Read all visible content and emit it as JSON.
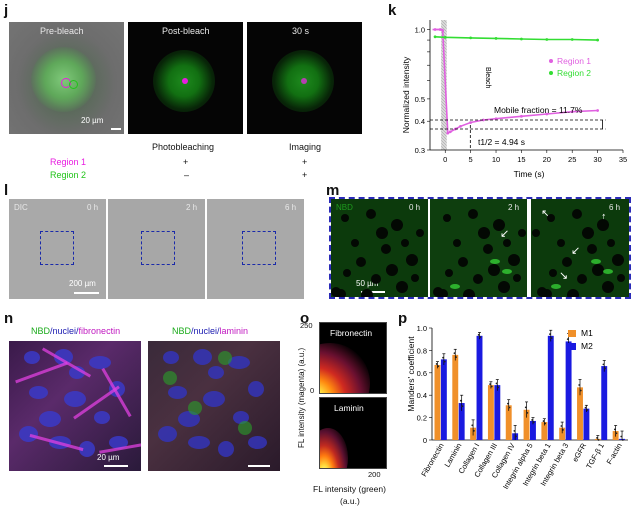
{
  "panel_j": {
    "letter": "j",
    "images": [
      "Pre-bleach",
      "Post-bleach",
      "30 s"
    ],
    "scale_bar": "20 µm",
    "col_headers": [
      "Photobleaching",
      "Imaging"
    ],
    "rows": [
      {
        "label": "Region 1",
        "color": "#e81ce0",
        "values": [
          "+",
          "+"
        ]
      },
      {
        "label": "Region 2",
        "color": "#22c41a",
        "values": [
          "–",
          "+"
        ]
      }
    ]
  },
  "panel_k": {
    "letter": "k",
    "bleach_label": "Bleach",
    "mobile_fraction": "Mobile fraction = 11.7%",
    "half_time": "t1/2 = 4.94 s"
  },
  "panel_l": {
    "letter": "l",
    "label_dic": "DIC",
    "times": [
      "0 h",
      "2 h",
      "6 h"
    ],
    "scale_bar": "200 µm"
  },
  "panel_m": {
    "letter": "m",
    "label_nbd": "NBD",
    "times": [
      "0 h",
      "2 h",
      "6 h"
    ],
    "scale_bar": "50 µm"
  },
  "panel_n": {
    "letter": "n",
    "left_title": [
      "NBD",
      "/nuclei/",
      "fibronectin"
    ],
    "right_title": [
      "NBD",
      "/nuclei/",
      "laminin"
    ],
    "scale_bar": "20 µm"
  },
  "panel_o": {
    "letter": "o",
    "top_label": "Fibronectin",
    "bottom_label": "Laminin",
    "ylabel": "FL intensity (magenta) (a.u.)",
    "xlabel": "FL intensity (green)",
    "xlabel2": "(a.u.)",
    "ticks": [
      "250",
      "0",
      "200"
    ]
  },
  "panel_p": {
    "letter": "p"
  },
  "chart_data": [
    {
      "type": "line",
      "title": "",
      "xlabel": "Time (s)",
      "ylabel": "Normalized intensity",
      "xlim": [
        -3,
        35
      ],
      "ylim": [
        0.3,
        1.1
      ],
      "yscale": "log",
      "xticks": [
        0,
        5,
        10,
        15,
        20,
        25,
        30,
        35
      ],
      "yticks": [
        0.3,
        0.4,
        0.5,
        0.6,
        0.7,
        0.8,
        0.9,
        1.0
      ],
      "ytick_labels": [
        "0.3",
        "0.4",
        "0.5",
        "0.6",
        "0.7",
        "0.8",
        "0.9",
        "1.0"
      ],
      "legend_position": "top-right",
      "series": [
        {
          "name": "Region 1",
          "color": "#e060e0",
          "x": [
            -2,
            -1,
            -0.5,
            0.5,
            1,
            2,
            3,
            5,
            7.5,
            10,
            15,
            20,
            25,
            30
          ],
          "y": [
            1.0,
            1.0,
            0.99,
            0.355,
            0.36,
            0.37,
            0.38,
            0.395,
            0.405,
            0.41,
            0.42,
            0.43,
            0.44,
            0.445
          ]
        },
        {
          "name": "Region 2",
          "color": "#33dd33",
          "x": [
            -2,
            0,
            5,
            10,
            15,
            20,
            25,
            30
          ],
          "y": [
            0.93,
            0.925,
            0.92,
            0.915,
            0.91,
            0.905,
            0.905,
            0.9
          ]
        }
      ]
    },
    {
      "type": "bar",
      "title": "",
      "ylabel": "Manders' coefficient",
      "ylim": [
        0,
        1.0
      ],
      "yticks": [
        0,
        0.2,
        0.4,
        0.6,
        0.8,
        1.0
      ],
      "ytick_labels": [
        "0",
        "0.2",
        "0.4",
        "0.6",
        "0.8",
        "1.0"
      ],
      "legend_position": "top-right",
      "categories": [
        "Fibronectin",
        "Laminin",
        "Collagen I",
        "Collagen III",
        "Collagen IV",
        "Integrin alpha 5",
        "Integrin beta 1",
        "Integrin beta 3",
        "eGFR",
        "TGF-β 1",
        "F-actin"
      ],
      "series": [
        {
          "name": "M1",
          "color": "#f0902a",
          "values": [
            0.67,
            0.76,
            0.11,
            0.49,
            0.31,
            0.27,
            0.16,
            0.11,
            0.47,
            0.01,
            0.08
          ]
        },
        {
          "name": "M2",
          "color": "#1a1ae0",
          "values": [
            0.72,
            0.33,
            0.93,
            0.49,
            0.06,
            0.17,
            0.93,
            0.88,
            0.28,
            0.66,
            0.01
          ]
        }
      ]
    }
  ]
}
